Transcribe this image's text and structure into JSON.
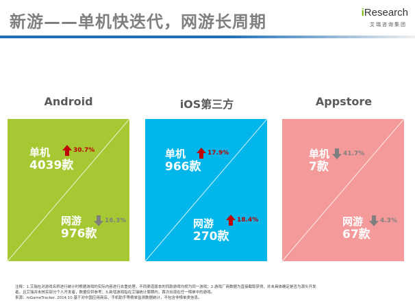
{
  "title": "新游——单机快迭代，网游长周期",
  "logo": {
    "i": "i",
    "brand": "Research",
    "subtitle": "艾瑞咨询集团"
  },
  "colors": {
    "title_text": "#7f7f7f",
    "title_rule": "#1f6fb8",
    "android": "#a6c832",
    "ios": "#00b6ea",
    "appstore": "#f59a9a",
    "up": "#c00000",
    "down": "#7f7f7f"
  },
  "panels": [
    {
      "label": "Android",
      "single": {
        "name": "单机",
        "count": "4039款",
        "change": "30.7%",
        "direction": "up"
      },
      "online": {
        "name": "网游",
        "count": "976款",
        "change": "16.3%",
        "direction": "down"
      }
    },
    {
      "label": "iOS第三方",
      "single": {
        "name": "单机",
        "count": "966款",
        "change": "17.9%",
        "direction": "up"
      },
      "online": {
        "name": "网游",
        "count": "270款",
        "change": "18.4%",
        "direction": "up"
      }
    },
    {
      "label": "Appstore",
      "single": {
        "name": "单机",
        "count": "7款",
        "change": "41.7%",
        "direction": "down"
      },
      "online": {
        "name": "网游",
        "count": "67款",
        "change": "4.3%",
        "direction": "down"
      }
    }
  ],
  "footnote": {
    "line1": "注释：1.艾瑞在对游戏名称进行统计时根据游戏的实际内容进行去重处理，不同渠道版本的同款游戏均视为同一游戏；2.游戏厂商数据为直接截取获得，并未具体确定是否为源头开发",
    "line2": "者，且艾瑞并未核实部分个人开发者，数据仅供参考；3.新增游戏指在艾瑞统计周期内，首次出现在任一榜单中的游戏。",
    "line3": "来源：mGameTracker. 2014.10 基于对中国应用商店、手机助手等榜单监测数据统计，不包含非榜单类信息。"
  }
}
